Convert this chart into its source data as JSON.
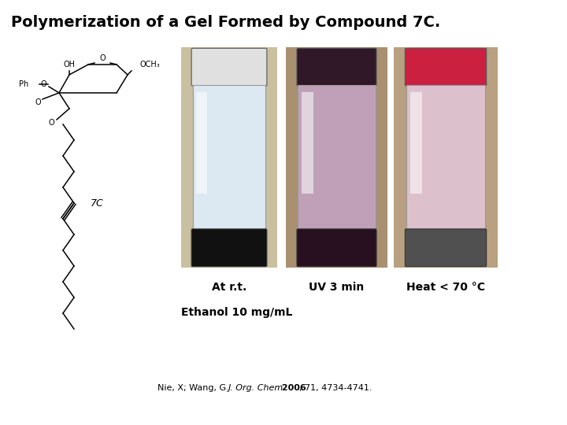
{
  "title": "Polymerization of a Gel Formed by Compound 7C.",
  "title_fontsize": 14,
  "title_weight": "bold",
  "label1": "At r.t.",
  "label2": "UV 3 min",
  "label3": "Heat < 70 °C",
  "labels_fontsize": 10,
  "labels_weight": "bold",
  "ethanol_label": "Ethanol 10 mg/mL",
  "ethanol_fontsize": 10,
  "ethanol_weight": "bold",
  "citation_fontsize": 8,
  "compound_label": "7C",
  "compound_fontsize": 8,
  "bg_color": "#ffffff",
  "text_color": "#000000",
  "struct_color": "#000000",
  "vial1_body": "#dce8f2",
  "vial1_cap_bot": "#111111",
  "vial1_cap_top": "#e0e0e0",
  "vial1_photo_bg": "#c8c0a0",
  "vial2_body": "#c0a0b8",
  "vial2_cap_bot": "#281020",
  "vial2_cap_top": "#301828",
  "vial2_photo_bg": "#a89070",
  "vial3_body": "#dcc0cc",
  "vial3_cap_bot": "#505050",
  "vial3_cap_top": "#cc2040",
  "vial3_photo_bg": "#b8a080"
}
